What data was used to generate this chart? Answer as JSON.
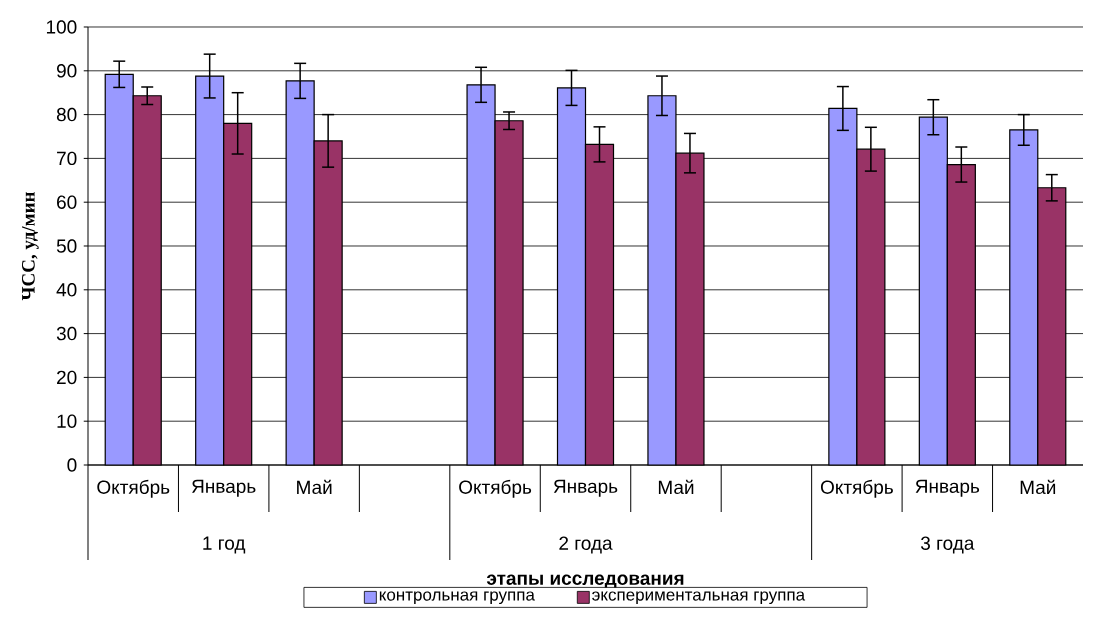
{
  "chart_data": {
    "type": "bar",
    "ylabel": "ЧСС, уд/мин",
    "xlabel": "этапы исследования",
    "categories": [
      "Октябрь",
      "Январь",
      "Май",
      null,
      "Октябрь",
      "Январь",
      "Май",
      null,
      "Октябрь",
      "Январь",
      "Май"
    ],
    "series": [
      {
        "name": "контрольная группа",
        "color": "#9999ff",
        "values": [
          89.2,
          88.8,
          87.7,
          null,
          86.8,
          86.1,
          84.3,
          null,
          81.4,
          79.4,
          76.5
        ],
        "errors": [
          3,
          5,
          4,
          null,
          4,
          4,
          4.5,
          null,
          5,
          4,
          3.5
        ]
      },
      {
        "name": "экспериментальная группа",
        "color": "#993366",
        "values": [
          84.3,
          78.0,
          74.0,
          null,
          78.6,
          73.2,
          71.2,
          null,
          72.1,
          68.6,
          63.3
        ],
        "errors": [
          2,
          7,
          6,
          null,
          2,
          4,
          4.5,
          null,
          5,
          4,
          3
        ]
      }
    ],
    "annotations": [
      "1 год",
      "2 года",
      "3 года"
    ],
    "ylim": [
      0,
      100
    ],
    "yticks": [
      0,
      10,
      20,
      30,
      40,
      50,
      60,
      70,
      80,
      90,
      100
    ],
    "grid": "y",
    "legend": "bottom"
  }
}
